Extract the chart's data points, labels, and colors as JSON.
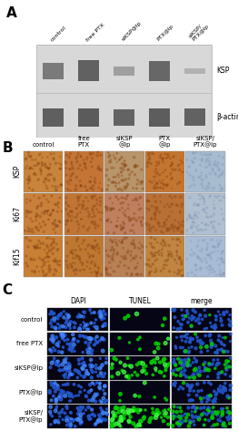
{
  "panel_A": {
    "label": "A",
    "col_labels": [
      "control",
      "free PTX",
      "siKSP@lp",
      "PTX@lp",
      "siKSP/\nPTX@lp"
    ],
    "row_labels": [
      "KSP",
      "β-actin"
    ],
    "ksp_bands": [
      0.7,
      0.9,
      0.4,
      0.85,
      0.25
    ],
    "actin_bands": [
      0.85,
      0.88,
      0.82,
      0.87,
      0.83
    ]
  },
  "panel_B": {
    "label": "B",
    "col_labels": [
      "control",
      "free\nPTX",
      "siKSP\n@lp",
      "PTX\n@lp",
      "siKSP/\nPTX@lp"
    ],
    "row_labels": [
      "KSP",
      "Ki67",
      "Kif15"
    ],
    "ihc_cell_colors": [
      [
        "#c8843a",
        "#c47535",
        "#b8956a",
        "#c47530",
        "#a8bcd0"
      ],
      [
        "#c8803a",
        "#c07535",
        "#c08060",
        "#b87035",
        "#b0c0d0"
      ],
      [
        "#c88035",
        "#bf7832",
        "#b88055",
        "#c08540",
        "#a8bcd5"
      ]
    ],
    "col_header_texts": [
      "control",
      "free\nPTX",
      "siKSP\n@lp",
      "PTX\n@lp",
      "siKSP/\nPTX@lp"
    ]
  },
  "panel_C": {
    "label": "C",
    "col_labels": [
      "DAPI",
      "TUNEL",
      "merge"
    ],
    "row_labels": [
      "control",
      "free PTX",
      "siKSP@lp",
      "PTX@lp",
      "siKSP/\nPTX@lp"
    ],
    "tunel_intensities": [
      0.05,
      0.12,
      0.45,
      0.08,
      0.75
    ]
  },
  "figure_bg": "#ffffff",
  "font_size_panel": 11
}
